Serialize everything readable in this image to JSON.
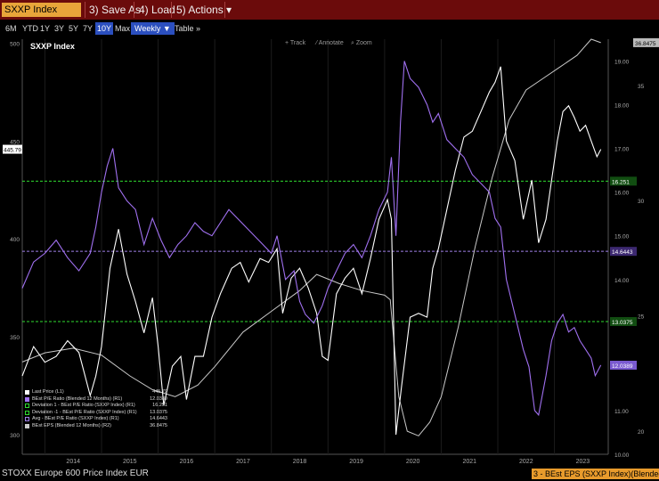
{
  "toolbar": {
    "ticker": "SXXP Index",
    "save_as": "3) Save As",
    "load": "4) Load",
    "actions": "5) Actions ▾"
  },
  "ranges": [
    "6M",
    "YTD",
    "1Y",
    "3Y",
    "5Y",
    "7Y",
    "10Y",
    "Max"
  ],
  "active_range": "10Y",
  "frequency": "Weekly ▼",
  "table_label": "Table",
  "more_label": "»",
  "tools": [
    "+ Track",
    "⁄ Annotate",
    "⌕ Zoom"
  ],
  "footer": {
    "left": "STOXX Europe 600 Price Index EUR",
    "right": "3 - BEst EPS (SXXP Index)(Blended 12"
  },
  "colors": {
    "price": "#ffffff",
    "pe": "#a070f0",
    "eps": "#c8c8c8",
    "dev_line": "#2fdc2f",
    "avg_line": "#9f7fe8",
    "toolbar_bg": "#6b0b0b",
    "title_bg": "#e8a53a"
  },
  "chart_data": {
    "type": "line",
    "title": "SXXP Index",
    "x_labels": [
      "2014",
      "2015",
      "2016",
      "2017",
      "2018",
      "2019",
      "2020",
      "2021",
      "2022",
      "2023"
    ],
    "left_axis": {
      "ticks": [
        300,
        350,
        400,
        450,
        500
      ],
      "range": [
        290,
        502
      ]
    },
    "right_axis_pe": {
      "ticks": [
        "10.00",
        "11.00",
        "12.00",
        "13.00",
        "14.00",
        "15.00",
        "16.00",
        "17.00",
        "18.00",
        "19.00"
      ],
      "range": [
        10,
        19.5
      ]
    },
    "right_axis_eps": {
      "ticks": [
        20,
        25,
        30,
        35
      ],
      "range": [
        19,
        37
      ]
    },
    "legend": [
      {
        "label": "Last Price  (L1)",
        "value": "445.79",
        "color": "#ffffff"
      },
      {
        "label": "BEst P/E Ratio (Blended 12 Months) (R1)",
        "value": "12.0389",
        "color": "#a070f0"
      },
      {
        "label": "Deviation 1 - BEst P/E Ratio (SXXP Index) (R1)",
        "value": "16.251",
        "color": "#2fdc2f"
      },
      {
        "label": "Deviation -1 - BEst P/E Ratio (SXXP Index) (R1)",
        "value": "13.0375",
        "color": "#2fdc2f"
      },
      {
        "label": "Avg - BEst P/E Ratio (SXXP Index) (R1)",
        "value": "14.6443",
        "color": "#9f7fe8"
      },
      {
        "label": "BEst EPS (Blended 12 Months) (R2)",
        "value": "36.8475",
        "color": "#c8c8c8"
      }
    ],
    "last_price_tag": "445.79",
    "pe_tags": {
      "dev_plus": "16.251",
      "avg": "14.6443",
      "dev_minus": "13.0375",
      "last": "12.0389"
    },
    "eps_tag": "36.8475",
    "reference_levels": {
      "dev_plus": 16.251,
      "avg": 14.6443,
      "dev_minus": 13.0375
    },
    "series": [
      {
        "name": "Last Price  (L1)",
        "axis": "left",
        "points": [
          [
            2013.6,
            330
          ],
          [
            2013.8,
            345
          ],
          [
            2014.0,
            337
          ],
          [
            2014.2,
            340
          ],
          [
            2014.4,
            348
          ],
          [
            2014.6,
            342
          ],
          [
            2014.8,
            320
          ],
          [
            2014.9,
            330
          ],
          [
            2015.0,
            345
          ],
          [
            2015.15,
            385
          ],
          [
            2015.3,
            405
          ],
          [
            2015.45,
            382
          ],
          [
            2015.6,
            368
          ],
          [
            2015.75,
            352
          ],
          [
            2015.9,
            370
          ],
          [
            2016.0,
            345
          ],
          [
            2016.1,
            315
          ],
          [
            2016.25,
            335
          ],
          [
            2016.4,
            340
          ],
          [
            2016.5,
            318
          ],
          [
            2016.65,
            340
          ],
          [
            2016.8,
            340
          ],
          [
            2016.95,
            360
          ],
          [
            2017.1,
            372
          ],
          [
            2017.3,
            385
          ],
          [
            2017.45,
            388
          ],
          [
            2017.6,
            378
          ],
          [
            2017.8,
            390
          ],
          [
            2017.95,
            388
          ],
          [
            2018.1,
            395
          ],
          [
            2018.2,
            362
          ],
          [
            2018.35,
            380
          ],
          [
            2018.5,
            385
          ],
          [
            2018.65,
            375
          ],
          [
            2018.8,
            362
          ],
          [
            2018.9,
            340
          ],
          [
            2019.0,
            338
          ],
          [
            2019.15,
            372
          ],
          [
            2019.3,
            380
          ],
          [
            2019.45,
            385
          ],
          [
            2019.6,
            372
          ],
          [
            2019.75,
            390
          ],
          [
            2019.9,
            410
          ],
          [
            2020.05,
            420
          ],
          [
            2020.12,
            410
          ],
          [
            2020.2,
            300
          ],
          [
            2020.3,
            325
          ],
          [
            2020.45,
            360
          ],
          [
            2020.6,
            362
          ],
          [
            2020.75,
            360
          ],
          [
            2020.85,
            385
          ],
          [
            2020.95,
            395
          ],
          [
            2021.1,
            415
          ],
          [
            2021.25,
            435
          ],
          [
            2021.4,
            452
          ],
          [
            2021.55,
            455
          ],
          [
            2021.7,
            465
          ],
          [
            2021.85,
            475
          ],
          [
            2021.95,
            480
          ],
          [
            2022.05,
            488
          ],
          [
            2022.15,
            450
          ],
          [
            2022.3,
            440
          ],
          [
            2022.45,
            410
          ],
          [
            2022.6,
            430
          ],
          [
            2022.72,
            398
          ],
          [
            2022.85,
            410
          ],
          [
            2022.95,
            430
          ],
          [
            2023.05,
            450
          ],
          [
            2023.15,
            465
          ],
          [
            2023.25,
            468
          ],
          [
            2023.35,
            462
          ],
          [
            2023.45,
            455
          ],
          [
            2023.55,
            458
          ],
          [
            2023.65,
            450
          ],
          [
            2023.75,
            442
          ],
          [
            2023.82,
            445.79
          ]
        ]
      },
      {
        "name": "BEst P/E Ratio (Blended 12 Months) (R1)",
        "axis": "pe",
        "points": [
          [
            2013.6,
            13.8
          ],
          [
            2013.8,
            14.4
          ],
          [
            2014.0,
            14.6
          ],
          [
            2014.2,
            14.9
          ],
          [
            2014.4,
            14.5
          ],
          [
            2014.6,
            14.2
          ],
          [
            2014.8,
            14.6
          ],
          [
            2014.9,
            15.2
          ],
          [
            2015.0,
            16.0
          ],
          [
            2015.1,
            16.6
          ],
          [
            2015.2,
            17.0
          ],
          [
            2015.3,
            16.1
          ],
          [
            2015.45,
            15.8
          ],
          [
            2015.6,
            15.6
          ],
          [
            2015.75,
            14.8
          ],
          [
            2015.9,
            15.4
          ],
          [
            2016.05,
            14.9
          ],
          [
            2016.2,
            14.5
          ],
          [
            2016.35,
            14.8
          ],
          [
            2016.5,
            15.0
          ],
          [
            2016.65,
            15.3
          ],
          [
            2016.8,
            15.1
          ],
          [
            2016.95,
            15.0
          ],
          [
            2017.1,
            15.3
          ],
          [
            2017.25,
            15.6
          ],
          [
            2017.4,
            15.4
          ],
          [
            2017.55,
            15.2
          ],
          [
            2017.7,
            15.0
          ],
          [
            2017.85,
            14.8
          ],
          [
            2018.0,
            14.6
          ],
          [
            2018.1,
            15.0
          ],
          [
            2018.25,
            14.0
          ],
          [
            2018.4,
            14.2
          ],
          [
            2018.5,
            13.5
          ],
          [
            2018.6,
            13.2
          ],
          [
            2018.75,
            13.0
          ],
          [
            2018.9,
            13.4
          ],
          [
            2019.0,
            13.8
          ],
          [
            2019.15,
            14.2
          ],
          [
            2019.3,
            14.6
          ],
          [
            2019.45,
            14.8
          ],
          [
            2019.6,
            14.5
          ],
          [
            2019.75,
            15.0
          ],
          [
            2019.9,
            15.6
          ],
          [
            2020.05,
            16.0
          ],
          [
            2020.12,
            16.8
          ],
          [
            2020.2,
            15.0
          ],
          [
            2020.28,
            17.6
          ],
          [
            2020.35,
            19.0
          ],
          [
            2020.45,
            18.6
          ],
          [
            2020.6,
            18.4
          ],
          [
            2020.75,
            18.0
          ],
          [
            2020.85,
            17.6
          ],
          [
            2020.95,
            17.8
          ],
          [
            2021.1,
            17.2
          ],
          [
            2021.25,
            17.0
          ],
          [
            2021.4,
            16.8
          ],
          [
            2021.55,
            16.4
          ],
          [
            2021.7,
            16.2
          ],
          [
            2021.85,
            16.0
          ],
          [
            2021.95,
            15.4
          ],
          [
            2022.05,
            15.2
          ],
          [
            2022.15,
            14.0
          ],
          [
            2022.3,
            13.2
          ],
          [
            2022.45,
            12.4
          ],
          [
            2022.55,
            12.0
          ],
          [
            2022.65,
            11.0
          ],
          [
            2022.72,
            10.9
          ],
          [
            2022.85,
            11.8
          ],
          [
            2022.95,
            12.6
          ],
          [
            2023.05,
            13.0
          ],
          [
            2023.15,
            13.2
          ],
          [
            2023.25,
            12.8
          ],
          [
            2023.35,
            12.9
          ],
          [
            2023.45,
            12.6
          ],
          [
            2023.55,
            12.4
          ],
          [
            2023.65,
            12.2
          ],
          [
            2023.72,
            11.8
          ],
          [
            2023.82,
            12.04
          ]
        ]
      },
      {
        "name": "BEst EPS (Blended 12 Months) (R2)",
        "axis": "eps",
        "points": [
          [
            2013.6,
            23.0
          ],
          [
            2014.0,
            23.4
          ],
          [
            2014.5,
            23.6
          ],
          [
            2015.0,
            23.3
          ],
          [
            2015.5,
            22.4
          ],
          [
            2015.9,
            21.8
          ],
          [
            2016.3,
            21.5
          ],
          [
            2016.7,
            22.0
          ],
          [
            2017.0,
            22.8
          ],
          [
            2017.5,
            24.3
          ],
          [
            2018.0,
            25.2
          ],
          [
            2018.5,
            26.1
          ],
          [
            2018.8,
            26.8
          ],
          [
            2019.2,
            26.4
          ],
          [
            2019.6,
            26.1
          ],
          [
            2020.0,
            25.9
          ],
          [
            2020.1,
            25.7
          ],
          [
            2020.25,
            21.5
          ],
          [
            2020.4,
            20.0
          ],
          [
            2020.6,
            19.8
          ],
          [
            2020.8,
            20.4
          ],
          [
            2021.0,
            21.5
          ],
          [
            2021.3,
            24.5
          ],
          [
            2021.6,
            28.0
          ],
          [
            2021.9,
            31.0
          ],
          [
            2022.2,
            33.5
          ],
          [
            2022.5,
            34.8
          ],
          [
            2022.8,
            35.3
          ],
          [
            2023.1,
            35.8
          ],
          [
            2023.4,
            36.3
          ],
          [
            2023.65,
            37.0
          ],
          [
            2023.82,
            36.8475
          ]
        ]
      }
    ]
  }
}
